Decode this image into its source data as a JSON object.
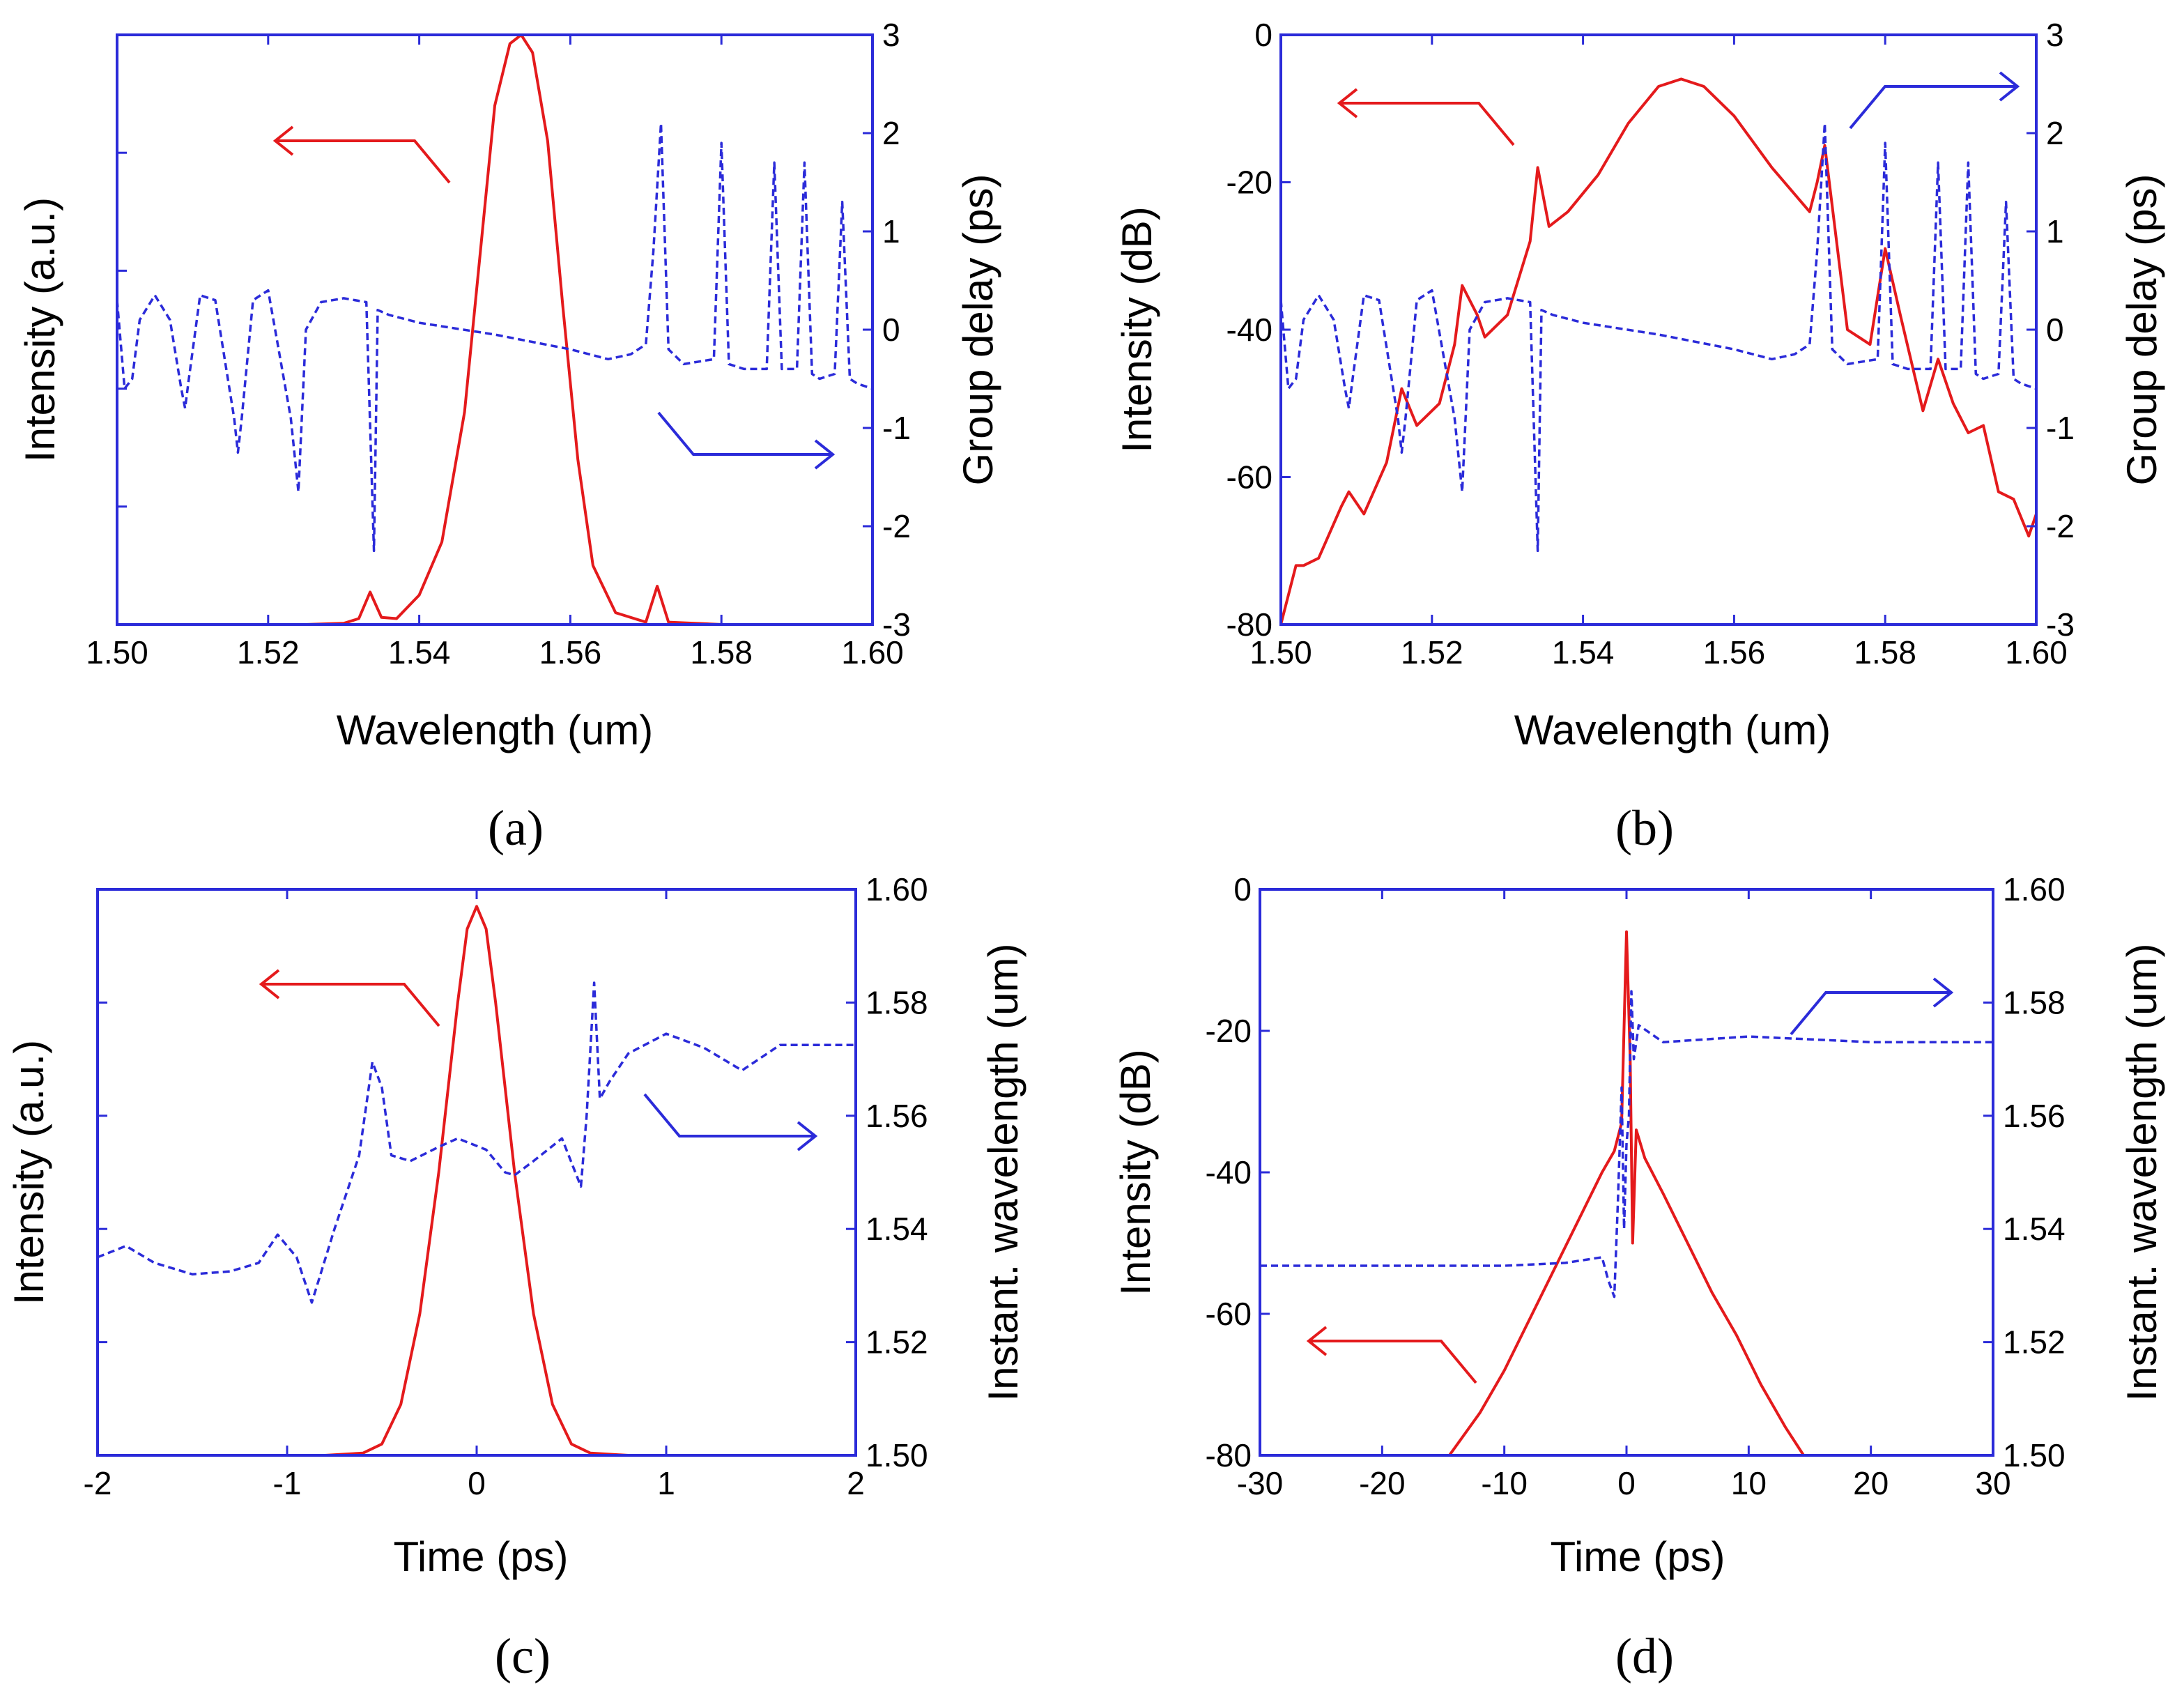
{
  "figure": {
    "colors": {
      "intensity": "#e41a1c",
      "delay": "#2b2bd9",
      "axis_frame": "#2b2bd9",
      "text": "#000000"
    },
    "panels": [
      {
        "label": "(a)"
      },
      {
        "label": "(b)"
      },
      {
        "label": "(c)"
      },
      {
        "label": "(d)"
      }
    ]
  },
  "chart_data": [
    {
      "panel": "(a)",
      "type": "line",
      "xlabel": "Wavelength (um)",
      "ylabel": "Intensity (a.u.)",
      "y2label": "Group delay (ps)",
      "xlim": [
        1.5,
        1.6
      ],
      "ylim": [
        0,
        1
      ],
      "y2lim": [
        -3,
        3
      ],
      "x_ticks": [
        1.5,
        1.52,
        1.54,
        1.56,
        1.58,
        1.6
      ],
      "x_tick_labels": [
        "1.50",
        "1.52",
        "1.54",
        "1.56",
        "1.58",
        "1.60"
      ],
      "y_ticks": [
        0.2,
        0.4,
        0.6,
        0.8
      ],
      "y_tick_labels": [],
      "y2_ticks": [
        -3,
        -2,
        -1,
        0,
        1,
        2,
        3
      ],
      "y2_tick_labels": [
        "-3",
        "-2",
        "-1",
        "0",
        "1",
        "2",
        "3"
      ],
      "series": [
        {
          "name": "Intensity",
          "axis": "left",
          "style": "solid",
          "x": [
            1.5,
            1.525,
            1.53,
            1.532,
            1.5335,
            1.535,
            1.537,
            1.54,
            1.543,
            1.546,
            1.548,
            1.55,
            1.552,
            1.5535,
            1.555,
            1.557,
            1.559,
            1.561,
            1.563,
            1.566,
            1.57,
            1.5715,
            1.573,
            1.58,
            1.6
          ],
          "y": [
            0.0,
            0.0,
            0.002,
            0.01,
            0.055,
            0.012,
            0.01,
            0.05,
            0.14,
            0.36,
            0.62,
            0.88,
            0.985,
            1.0,
            0.97,
            0.82,
            0.54,
            0.28,
            0.1,
            0.02,
            0.004,
            0.065,
            0.004,
            0.0,
            0.0
          ]
        },
        {
          "name": "Group delay",
          "axis": "right",
          "style": "dashed",
          "x": [
            1.5,
            1.501,
            1.502,
            1.503,
            1.505,
            1.507,
            1.5085,
            1.509,
            1.5095,
            1.511,
            1.513,
            1.5155,
            1.516,
            1.5165,
            1.518,
            1.52,
            1.523,
            1.524,
            1.525,
            1.527,
            1.53,
            1.533,
            1.534,
            1.5345,
            1.536,
            1.54,
            1.55,
            1.56,
            1.565,
            1.568,
            1.57,
            1.571,
            1.572,
            1.573,
            1.575,
            1.579,
            1.58,
            1.581,
            1.583,
            1.586,
            1.587,
            1.588,
            1.59,
            1.591,
            1.592,
            1.593,
            1.595,
            1.596,
            1.597,
            1.598,
            1.6
          ],
          "y": [
            0.3,
            -0.6,
            -0.5,
            0.1,
            0.35,
            0.1,
            -0.6,
            -0.8,
            -0.5,
            0.35,
            0.3,
            -0.9,
            -1.25,
            -0.9,
            0.3,
            0.4,
            -0.9,
            -1.65,
            0.0,
            0.28,
            0.32,
            0.28,
            -2.25,
            0.2,
            0.15,
            0.07,
            -0.05,
            -0.2,
            -0.3,
            -0.25,
            -0.15,
            0.8,
            2.1,
            -0.2,
            -0.35,
            -0.3,
            1.9,
            -0.35,
            -0.4,
            -0.4,
            1.7,
            -0.4,
            -0.4,
            1.7,
            -0.45,
            -0.5,
            -0.45,
            1.3,
            -0.5,
            -0.55,
            -0.6
          ]
        }
      ]
    },
    {
      "panel": "(b)",
      "type": "line",
      "xlabel": "Wavelength (um)",
      "ylabel": "Intensity (dB)",
      "y2label": "Group delay (ps)",
      "xlim": [
        1.5,
        1.6
      ],
      "ylim": [
        -80,
        0
      ],
      "y2lim": [
        -3,
        3
      ],
      "x_ticks": [
        1.5,
        1.52,
        1.54,
        1.56,
        1.58,
        1.6
      ],
      "x_tick_labels": [
        "1.50",
        "1.52",
        "1.54",
        "1.56",
        "1.58",
        "1.60"
      ],
      "y_ticks": [
        -80,
        -60,
        -40,
        -20,
        0
      ],
      "y_tick_labels": [
        "-80",
        "-60",
        "-40",
        "-20",
        "0"
      ],
      "y2_ticks": [
        -3,
        -2,
        -1,
        0,
        1,
        2,
        3
      ],
      "y2_tick_labels": [
        "-3",
        "-2",
        "-1",
        "0",
        "1",
        "2",
        "3"
      ],
      "series": [
        {
          "name": "Intensity",
          "axis": "left",
          "style": "solid",
          "x": [
            1.5,
            1.502,
            1.503,
            1.505,
            1.508,
            1.509,
            1.511,
            1.514,
            1.516,
            1.518,
            1.521,
            1.523,
            1.524,
            1.526,
            1.527,
            1.53,
            1.533,
            1.534,
            1.5355,
            1.538,
            1.542,
            1.546,
            1.55,
            1.553,
            1.556,
            1.56,
            1.565,
            1.57,
            1.571,
            1.572,
            1.575,
            1.578,
            1.58,
            1.582,
            1.585,
            1.587,
            1.589,
            1.591,
            1.593,
            1.595,
            1.597,
            1.599,
            1.6
          ],
          "y": [
            -80,
            -72,
            -72,
            -71,
            -64,
            -62,
            -65,
            -58,
            -48,
            -53,
            -50,
            -42,
            -34,
            -38,
            -41,
            -38,
            -28,
            -18,
            -26,
            -24,
            -19,
            -12,
            -7,
            -6,
            -7,
            -11,
            -18,
            -24,
            -20,
            -15,
            -40,
            -42,
            -29,
            -38,
            -51,
            -44,
            -50,
            -54,
            -53,
            -62,
            -63,
            -68,
            -65
          ]
        },
        {
          "name": "Group delay",
          "axis": "right",
          "style": "dashed",
          "x": [
            1.5,
            1.501,
            1.502,
            1.503,
            1.505,
            1.507,
            1.5085,
            1.509,
            1.5095,
            1.511,
            1.513,
            1.5155,
            1.516,
            1.5165,
            1.518,
            1.52,
            1.523,
            1.524,
            1.525,
            1.527,
            1.53,
            1.533,
            1.534,
            1.5345,
            1.536,
            1.54,
            1.55,
            1.56,
            1.565,
            1.568,
            1.57,
            1.571,
            1.572,
            1.573,
            1.575,
            1.579,
            1.58,
            1.581,
            1.583,
            1.586,
            1.587,
            1.588,
            1.59,
            1.591,
            1.592,
            1.593,
            1.595,
            1.596,
            1.597,
            1.598,
            1.6
          ],
          "y": [
            0.3,
            -0.6,
            -0.5,
            0.1,
            0.35,
            0.1,
            -0.6,
            -0.8,
            -0.5,
            0.35,
            0.3,
            -0.9,
            -1.25,
            -0.9,
            0.3,
            0.4,
            -0.9,
            -1.65,
            0.0,
            0.28,
            0.32,
            0.28,
            -2.25,
            0.2,
            0.15,
            0.07,
            -0.05,
            -0.2,
            -0.3,
            -0.25,
            -0.15,
            0.8,
            2.1,
            -0.2,
            -0.35,
            -0.3,
            1.9,
            -0.35,
            -0.4,
            -0.4,
            1.7,
            -0.4,
            -0.4,
            1.7,
            -0.45,
            -0.5,
            -0.45,
            1.3,
            -0.5,
            -0.55,
            -0.6
          ]
        }
      ]
    },
    {
      "panel": "(c)",
      "type": "line",
      "xlabel": "Time (ps)",
      "ylabel": "Intensity (a.u.)",
      "y2label": "Instant. wavelength (um)",
      "xlim": [
        -2,
        2
      ],
      "ylim": [
        0,
        1
      ],
      "y2lim": [
        1.5,
        1.6
      ],
      "x_ticks": [
        -2,
        -1,
        0,
        1,
        2
      ],
      "x_tick_labels": [
        "-2",
        "-1",
        "0",
        "1",
        "2"
      ],
      "y_ticks": [
        0.2,
        0.4,
        0.6,
        0.8
      ],
      "y_tick_labels": [],
      "y2_ticks": [
        1.5,
        1.52,
        1.54,
        1.56,
        1.58,
        1.6
      ],
      "y2_tick_labels": [
        "1.50",
        "1.52",
        "1.54",
        "1.56",
        "1.58",
        "1.60"
      ],
      "series": [
        {
          "name": "Intensity",
          "axis": "left",
          "style": "solid",
          "x": [
            -2.0,
            -0.8,
            -0.6,
            -0.5,
            -0.4,
            -0.3,
            -0.2,
            -0.1,
            -0.05,
            0.0,
            0.05,
            0.1,
            0.2,
            0.3,
            0.4,
            0.5,
            0.6,
            0.8,
            2.0
          ],
          "y": [
            0.0,
            0.0,
            0.004,
            0.02,
            0.09,
            0.25,
            0.5,
            0.8,
            0.93,
            0.97,
            0.93,
            0.8,
            0.5,
            0.25,
            0.09,
            0.02,
            0.004,
            0.0,
            0.0
          ]
        },
        {
          "name": "Instant. wavelength",
          "axis": "right",
          "style": "dashed",
          "x": [
            -2.0,
            -1.85,
            -1.7,
            -1.5,
            -1.3,
            -1.15,
            -1.05,
            -0.95,
            -0.87,
            -0.75,
            -0.62,
            -0.55,
            -0.5,
            -0.45,
            -0.35,
            -0.2,
            -0.1,
            0.05,
            0.15,
            0.2,
            0.3,
            0.45,
            0.55,
            0.58,
            0.62,
            0.65,
            0.7,
            0.8,
            1.0,
            1.2,
            1.4,
            1.6,
            2.0
          ],
          "y": [
            1.535,
            1.537,
            1.534,
            1.532,
            1.5325,
            1.534,
            1.539,
            1.535,
            1.527,
            1.54,
            1.553,
            1.5695,
            1.565,
            1.553,
            1.552,
            1.5545,
            1.556,
            1.554,
            1.55,
            1.5495,
            1.552,
            1.556,
            1.5475,
            1.56,
            1.5835,
            1.563,
            1.566,
            1.571,
            1.5745,
            1.572,
            1.568,
            1.5725,
            1.5725
          ]
        }
      ]
    },
    {
      "panel": "(d)",
      "type": "line",
      "xlabel": "Time (ps)",
      "ylabel": "Intensity (dB)",
      "y2label": "Instant. wavelength (um)",
      "xlim": [
        -30,
        30
      ],
      "ylim": [
        -80,
        0
      ],
      "y2lim": [
        1.5,
        1.6
      ],
      "x_ticks": [
        -30,
        -20,
        -10,
        0,
        10,
        20,
        30
      ],
      "x_tick_labels": [
        "-30",
        "-20",
        "-10",
        "0",
        "10",
        "20",
        "30"
      ],
      "y_ticks": [
        -80,
        -60,
        -40,
        -20,
        0
      ],
      "y_tick_labels": [
        "-80",
        "-60",
        "-40",
        "-20",
        "0"
      ],
      "y2_ticks": [
        1.5,
        1.52,
        1.54,
        1.56,
        1.58,
        1.6
      ],
      "y2_tick_labels": [
        "1.50",
        "1.52",
        "1.54",
        "1.56",
        "1.58",
        "1.60"
      ],
      "series": [
        {
          "name": "Intensity",
          "axis": "left",
          "style": "solid",
          "x": [
            -14.5,
            -12,
            -10,
            -8,
            -6,
            -4,
            -2,
            -1,
            -0.4,
            0,
            0.3,
            0.5,
            0.8,
            1.5,
            3,
            5,
            7,
            9,
            11,
            13,
            14.5
          ],
          "y": [
            -80,
            -74,
            -68,
            -61,
            -54,
            -47,
            -40,
            -37,
            -33,
            -6,
            -24,
            -50,
            -34,
            -38,
            -43,
            -50,
            -57,
            -63,
            -70,
            -76,
            -80
          ]
        },
        {
          "name": "Instant. wavelength",
          "axis": "right",
          "style": "dashed",
          "x": [
            -30,
            -20,
            -10,
            -5,
            -2,
            -1.5,
            -1.0,
            -0.7,
            -0.4,
            -0.2,
            0,
            0.2,
            0.4,
            0.6,
            1,
            3,
            10,
            20,
            30
          ],
          "y": [
            1.5335,
            1.5335,
            1.5335,
            1.534,
            1.535,
            1.531,
            1.528,
            1.545,
            1.565,
            1.54,
            1.555,
            1.56,
            1.582,
            1.57,
            1.576,
            1.573,
            1.574,
            1.573,
            1.573
          ]
        }
      ]
    }
  ]
}
